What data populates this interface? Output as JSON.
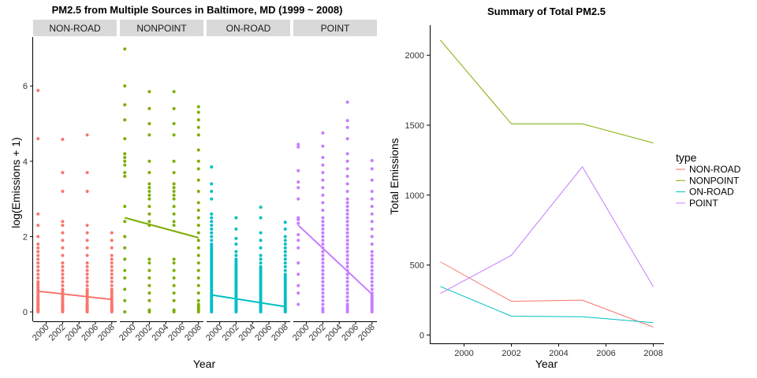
{
  "chart_data": [
    {
      "type": "scatter",
      "title": "PM2.5 from Multiple Sources in Baltimore, MD (1999 ~ 2008)",
      "xlabel": "Year",
      "ylabel": "log(Emissions + 1)",
      "ylim": [
        -0.25,
        7.3
      ],
      "yticks": [
        0,
        2,
        4,
        6
      ],
      "xlim": [
        1998.4,
        2008.6
      ],
      "xticks": [
        2000,
        2002,
        2004,
        2006,
        2008
      ],
      "facets": [
        {
          "name": "NON-ROAD",
          "color": "#F8766D",
          "fit": [
            [
              1999,
              0.55
            ],
            [
              2008,
              0.33
            ]
          ],
          "points": [
            {
              "x": 1999,
              "y": [
                0,
                0.02,
                0.04,
                0.06,
                0.08,
                0.1,
                0.12,
                0.15,
                0.18,
                0.2,
                0.22,
                0.25,
                0.28,
                0.3,
                0.32,
                0.35,
                0.38,
                0.4,
                0.45,
                0.5,
                0.55,
                0.6,
                0.65,
                0.7,
                0.75,
                0.8,
                0.9,
                1.0,
                1.1,
                1.2,
                1.3,
                1.4,
                1.5,
                1.6,
                1.7,
                1.8,
                2.0,
                2.3,
                2.6,
                4.6,
                5.88
              ]
            },
            {
              "x": 2002,
              "y": [
                0,
                0.02,
                0.04,
                0.06,
                0.08,
                0.1,
                0.12,
                0.15,
                0.18,
                0.2,
                0.25,
                0.3,
                0.35,
                0.4,
                0.45,
                0.5,
                0.55,
                0.6,
                0.7,
                0.8,
                0.9,
                1.0,
                1.1,
                1.2,
                1.3,
                1.5,
                1.7,
                1.9,
                2.1,
                2.3,
                2.4,
                3.2,
                3.7,
                4.58
              ]
            },
            {
              "x": 2005,
              "y": [
                0,
                0.02,
                0.04,
                0.06,
                0.08,
                0.1,
                0.12,
                0.15,
                0.18,
                0.2,
                0.25,
                0.3,
                0.35,
                0.4,
                0.45,
                0.5,
                0.55,
                0.6,
                0.7,
                0.8,
                0.9,
                1.0,
                1.1,
                1.2,
                1.3,
                1.5,
                1.7,
                1.9,
                2.1,
                2.3,
                3.2,
                3.7,
                4.7
              ]
            },
            {
              "x": 2008,
              "y": [
                0,
                0.02,
                0.04,
                0.06,
                0.08,
                0.1,
                0.12,
                0.15,
                0.18,
                0.2,
                0.25,
                0.3,
                0.35,
                0.4,
                0.45,
                0.5,
                0.55,
                0.6,
                0.7,
                0.8,
                0.9,
                1.0,
                1.1,
                1.2,
                1.3,
                1.4,
                1.5,
                1.7,
                1.9,
                2.1
              ]
            }
          ]
        },
        {
          "name": "NONPOINT",
          "color": "#7CAE00",
          "fit": [
            [
              1999,
              2.5
            ],
            [
              2008,
              1.97
            ]
          ],
          "points": [
            {
              "x": 1999,
              "y": [
                0,
                0.3,
                0.6,
                0.9,
                1.1,
                1.4,
                1.7,
                2.0,
                2.4,
                2.8,
                3.6,
                3.7,
                3.9,
                4.0,
                4.1,
                4.2,
                4.6,
                5.1,
                5.5,
                6.0,
                6.98
              ]
            },
            {
              "x": 2002,
              "y": [
                0,
                0.05,
                0.3,
                0.5,
                0.7,
                0.9,
                1.1,
                1.3,
                1.4,
                2.3,
                2.4,
                2.6,
                2.8,
                3.0,
                3.1,
                3.2,
                3.3,
                3.4,
                3.7,
                4.0,
                4.7,
                5.0,
                5.4,
                5.85
              ]
            },
            {
              "x": 2005,
              "y": [
                0,
                0.05,
                0.3,
                0.5,
                0.7,
                0.9,
                1.1,
                1.3,
                1.4,
                2.3,
                2.4,
                2.6,
                2.8,
                3.0,
                3.1,
                3.2,
                3.3,
                3.4,
                3.7,
                4.0,
                4.7,
                5.0,
                5.4,
                5.85
              ]
            },
            {
              "x": 2008,
              "y": [
                0,
                0.05,
                0.1,
                0.15,
                0.2,
                0.3,
                0.5,
                0.7,
                0.9,
                1.1,
                1.3,
                1.5,
                1.7,
                1.9,
                2.1,
                2.3,
                2.5,
                2.7,
                2.9,
                3.2,
                3.5,
                3.8,
                4.0,
                4.3,
                4.7,
                4.9,
                5.1,
                5.3,
                5.45
              ]
            }
          ]
        },
        {
          "name": "ON-ROAD",
          "color": "#00BFC4",
          "fit": [
            [
              1999,
              0.45
            ],
            [
              2008,
              0.14
            ]
          ],
          "points": [
            {
              "x": 1999,
              "y": [
                0,
                0.03,
                0.06,
                0.09,
                0.12,
                0.15,
                0.18,
                0.21,
                0.24,
                0.27,
                0.3,
                0.35,
                0.4,
                0.45,
                0.5,
                0.55,
                0.6,
                0.65,
                0.7,
                0.75,
                0.8,
                0.85,
                0.9,
                0.95,
                1.0,
                1.05,
                1.1,
                1.15,
                1.2,
                1.25,
                1.3,
                1.35,
                1.4,
                1.45,
                1.5,
                1.55,
                1.6,
                1.65,
                1.7,
                1.75,
                1.8,
                1.9,
                2.0,
                2.1,
                2.2,
                2.3,
                2.4,
                2.5,
                2.6,
                3.0,
                3.2,
                3.4,
                3.85
              ]
            },
            {
              "x": 2002,
              "y": [
                0,
                0.03,
                0.06,
                0.09,
                0.12,
                0.15,
                0.18,
                0.21,
                0.24,
                0.27,
                0.3,
                0.35,
                0.4,
                0.45,
                0.5,
                0.55,
                0.6,
                0.65,
                0.7,
                0.75,
                0.8,
                0.85,
                0.9,
                0.95,
                1.0,
                1.05,
                1.1,
                1.15,
                1.2,
                1.25,
                1.3,
                1.35,
                1.4,
                1.5,
                1.6,
                1.8,
                1.95,
                2.2,
                2.5
              ]
            },
            {
              "x": 2005,
              "y": [
                0,
                0.03,
                0.06,
                0.09,
                0.12,
                0.15,
                0.18,
                0.21,
                0.24,
                0.27,
                0.3,
                0.35,
                0.4,
                0.45,
                0.5,
                0.55,
                0.6,
                0.65,
                0.7,
                0.75,
                0.8,
                0.85,
                0.9,
                0.95,
                1.0,
                1.05,
                1.1,
                1.15,
                1.2,
                1.3,
                1.4,
                1.5,
                1.7,
                1.9,
                2.1,
                2.5,
                2.78
              ]
            },
            {
              "x": 2008,
              "y": [
                0,
                0.03,
                0.06,
                0.09,
                0.12,
                0.15,
                0.18,
                0.21,
                0.24,
                0.27,
                0.3,
                0.35,
                0.4,
                0.45,
                0.5,
                0.55,
                0.6,
                0.65,
                0.7,
                0.75,
                0.8,
                0.85,
                0.9,
                0.95,
                1.0,
                1.1,
                1.2,
                1.3,
                1.4,
                1.5,
                1.6,
                1.7,
                1.8,
                1.9,
                2.0,
                2.2,
                2.38
              ]
            }
          ]
        },
        {
          "name": "POINT",
          "color": "#C77CFF",
          "fit": [
            [
              1999,
              2.3
            ],
            [
              2008,
              0.47
            ]
          ],
          "points": [
            {
              "x": 1999,
              "y": [
                0.2,
                0.5,
                0.7,
                1.0,
                1.3,
                1.7,
                1.9,
                2.05,
                2.35,
                2.45,
                2.5,
                3.0,
                3.3,
                3.45,
                3.75,
                4.38,
                4.45
              ]
            },
            {
              "x": 2002,
              "y": [
                0,
                0.05,
                0.1,
                0.2,
                0.3,
                0.4,
                0.5,
                0.6,
                0.7,
                0.8,
                0.9,
                1.0,
                1.1,
                1.2,
                1.3,
                1.4,
                1.5,
                1.6,
                1.7,
                1.8,
                1.9,
                2.0,
                2.1,
                2.2,
                2.3,
                2.4,
                2.5,
                2.7,
                2.9,
                3.1,
                3.3,
                3.5,
                3.7,
                3.9,
                4.1,
                4.4,
                4.75
              ]
            },
            {
              "x": 2005,
              "y": [
                0,
                0.05,
                0.1,
                0.15,
                0.2,
                0.3,
                0.4,
                0.5,
                0.6,
                0.7,
                0.8,
                0.9,
                1.0,
                1.1,
                1.2,
                1.3,
                1.4,
                1.5,
                1.6,
                1.7,
                1.8,
                1.9,
                2.0,
                2.1,
                2.2,
                2.3,
                2.4,
                2.5,
                2.6,
                2.7,
                2.8,
                2.9,
                3.0,
                3.2,
                3.4,
                3.6,
                3.8,
                4.0,
                4.2,
                4.6,
                4.9,
                5.08,
                5.57
              ]
            },
            {
              "x": 2008,
              "y": [
                0,
                0.05,
                0.1,
                0.15,
                0.2,
                0.25,
                0.3,
                0.35,
                0.4,
                0.45,
                0.5,
                0.6,
                0.7,
                0.8,
                0.9,
                1.0,
                1.1,
                1.2,
                1.3,
                1.4,
                1.5,
                1.6,
                1.8,
                2.0,
                2.2,
                2.4,
                2.6,
                2.8,
                3.0,
                3.2,
                3.5,
                3.8,
                4.02
              ]
            }
          ]
        }
      ],
      "grid": false
    },
    {
      "type": "line",
      "title": "Summary of Total PM2.5",
      "xlabel": "Year",
      "ylabel": "Total Emissions",
      "xlim": [
        1998.55,
        2008.45
      ],
      "xticks": [
        2000,
        2002,
        2004,
        2006,
        2008
      ],
      "ylim": [
        -60,
        2215
      ],
      "yticks": [
        0,
        500,
        1000,
        1500,
        2000
      ],
      "x": [
        1999,
        2002,
        2005,
        2008
      ],
      "series": [
        {
          "name": "NON-ROAD",
          "color": "#F8766D",
          "values": [
            522.9,
            240.8,
            248.9,
            55.8
          ]
        },
        {
          "name": "NONPOINT",
          "color": "#7CAE00",
          "values": [
            2107.6,
            1509.5,
            1509.5,
            1373.2
          ]
        },
        {
          "name": "ON-ROAD",
          "color": "#00BFC4",
          "values": [
            346.8,
            134.3,
            130.4,
            88.3
          ]
        },
        {
          "name": "POINT",
          "color": "#C77CFF",
          "values": [
            296.8,
            569.3,
            1202.5,
            344.98
          ]
        }
      ],
      "legend_title": "type",
      "legend_position": "right",
      "grid": false
    }
  ]
}
